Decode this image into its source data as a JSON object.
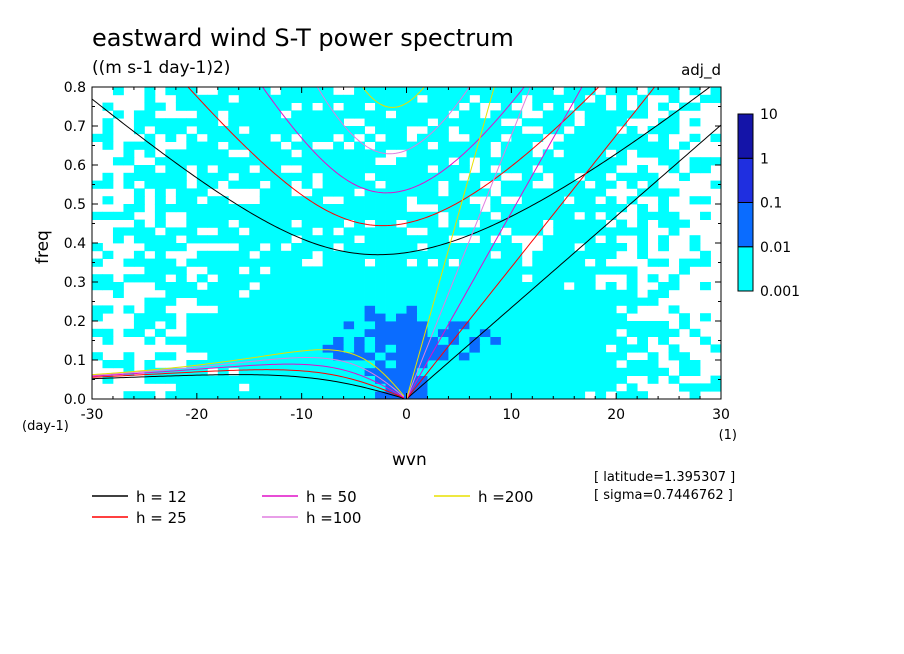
{
  "chart_data": {
    "type": "heatmap",
    "title": "eastward wind S-T power spectrum",
    "subtitle": "((m s-1 day-1)2)",
    "tag": "adj_d",
    "xlabel": "wvn",
    "ylabel": "freq",
    "x_units": "(1)",
    "y_units": "(day-1)",
    "xlim": [
      -30,
      30
    ],
    "ylim": [
      0,
      0.8
    ],
    "x_ticks": [
      "-30",
      "-20",
      "-10",
      "0",
      "10",
      "20",
      "30"
    ],
    "y_ticks": [
      "0.0",
      "0.1",
      "0.2",
      "0.3",
      "0.4",
      "0.5",
      "0.6",
      "0.7",
      "0.8"
    ],
    "colorbar": {
      "levels": [
        "0.001",
        "0.01",
        "0.1",
        "1",
        "10"
      ],
      "colors": [
        "#00ffff",
        "#0a6cff",
        "#1f2fe0",
        "#1414a8",
        "#4b1fb0"
      ]
    },
    "background_color": "#ffffff",
    "info": [
      "[ latitude=1.395307 ]",
      "[ sigma=0.7446762 ]"
    ],
    "dispersion_legend": [
      {
        "label": "h = 12",
        "h": 12,
        "color": "#000000"
      },
      {
        "label": "h = 25",
        "h": 25,
        "color": "#ff0000"
      },
      {
        "label": "h = 50",
        "h": 50,
        "color": "#e010c8"
      },
      {
        "label": "h =100",
        "h": 100,
        "color": "#e07ee0"
      },
      {
        "label": "h =200",
        "h": 200,
        "color": "#e8e000"
      }
    ]
  }
}
